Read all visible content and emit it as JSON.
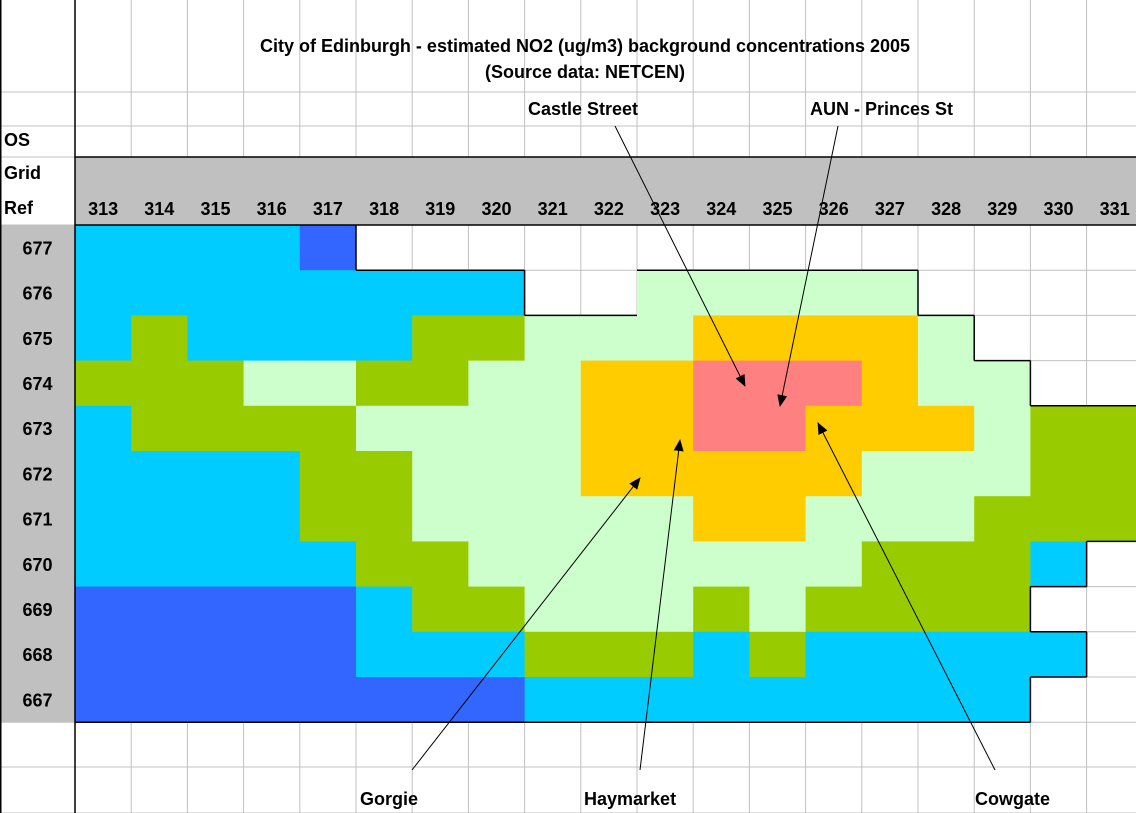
{
  "title": {
    "line1": "City of Edinburgh - estimated NO2 (ug/m3) background concentrations 2005",
    "line2": "(Source data: NETCEN)"
  },
  "header": {
    "os": "OS",
    "grid": "Grid",
    "ref": "Ref"
  },
  "columns": [
    "313",
    "314",
    "315",
    "316",
    "317",
    "318",
    "319",
    "320",
    "321",
    "322",
    "323",
    "324",
    "325",
    "326",
    "327",
    "328",
    "329",
    "330",
    "331"
  ],
  "rows": [
    {
      "label": "677",
      "cells": [
        "#00ccff",
        "#00ccff",
        "#00ccff",
        "#00ccff",
        "#3366ff",
        null,
        null,
        null,
        null,
        null,
        null,
        null,
        null,
        null,
        null,
        null,
        null,
        null,
        null
      ]
    },
    {
      "label": "676",
      "cells": [
        "#00ccff",
        "#00ccff",
        "#00ccff",
        "#00ccff",
        "#00ccff",
        "#00ccff",
        "#00ccff",
        "#00ccff",
        null,
        null,
        "#ccffcc",
        "#ccffcc",
        "#ccffcc",
        "#ccffcc",
        "#ccffcc",
        null,
        null,
        null,
        null
      ]
    },
    {
      "label": "675",
      "cells": [
        "#00ccff",
        "#99cc00",
        "#00ccff",
        "#00ccff",
        "#00ccff",
        "#00ccff",
        "#99cc00",
        "#99cc00",
        "#ccffcc",
        "#ccffcc",
        "#ccffcc",
        "#ffcc00",
        "#ffcc00",
        "#ffcc00",
        "#ffcc00",
        "#ccffcc",
        null,
        null,
        null
      ]
    },
    {
      "label": "674",
      "cells": [
        "#99cc00",
        "#99cc00",
        "#99cc00",
        "#ccffcc",
        "#ccffcc",
        "#99cc00",
        "#99cc00",
        "#ccffcc",
        "#ccffcc",
        "#ffcc00",
        "#ffcc00",
        "#ff8080",
        "#ff8080",
        "#ff8080",
        "#ffcc00",
        "#ccffcc",
        "#ccffcc",
        null,
        null
      ]
    },
    {
      "label": "673",
      "cells": [
        "#00ccff",
        "#99cc00",
        "#99cc00",
        "#99cc00",
        "#99cc00",
        "#ccffcc",
        "#ccffcc",
        "#ccffcc",
        "#ccffcc",
        "#ffcc00",
        "#ffcc00",
        "#ff8080",
        "#ff8080",
        "#ffcc00",
        "#ffcc00",
        "#ffcc00",
        "#ccffcc",
        "#99cc00",
        "#99cc00"
      ]
    },
    {
      "label": "672",
      "cells": [
        "#00ccff",
        "#00ccff",
        "#00ccff",
        "#00ccff",
        "#99cc00",
        "#99cc00",
        "#ccffcc",
        "#ccffcc",
        "#ccffcc",
        "#ffcc00",
        "#ffcc00",
        "#ffcc00",
        "#ffcc00",
        "#ffcc00",
        "#ccffcc",
        "#ccffcc",
        "#ccffcc",
        "#99cc00",
        "#99cc00"
      ]
    },
    {
      "label": "671",
      "cells": [
        "#00ccff",
        "#00ccff",
        "#00ccff",
        "#00ccff",
        "#99cc00",
        "#99cc00",
        "#ccffcc",
        "#ccffcc",
        "#ccffcc",
        "#ccffcc",
        "#ccffcc",
        "#ffcc00",
        "#ffcc00",
        "#ccffcc",
        "#ccffcc",
        "#ccffcc",
        "#99cc00",
        "#99cc00",
        "#99cc00"
      ]
    },
    {
      "label": "670",
      "cells": [
        "#00ccff",
        "#00ccff",
        "#00ccff",
        "#00ccff",
        "#00ccff",
        "#99cc00",
        "#99cc00",
        "#ccffcc",
        "#ccffcc",
        "#ccffcc",
        "#ccffcc",
        "#ccffcc",
        "#ccffcc",
        "#ccffcc",
        "#99cc00",
        "#99cc00",
        "#99cc00",
        "#00ccff",
        null
      ]
    },
    {
      "label": "669",
      "cells": [
        "#3366ff",
        "#3366ff",
        "#3366ff",
        "#3366ff",
        "#3366ff",
        "#00ccff",
        "#99cc00",
        "#99cc00",
        "#ccffcc",
        "#ccffcc",
        "#ccffcc",
        "#99cc00",
        "#ccffcc",
        "#99cc00",
        "#99cc00",
        "#99cc00",
        "#99cc00",
        null,
        null
      ]
    },
    {
      "label": "668",
      "cells": [
        "#3366ff",
        "#3366ff",
        "#3366ff",
        "#3366ff",
        "#3366ff",
        "#00ccff",
        "#00ccff",
        "#00ccff",
        "#99cc00",
        "#99cc00",
        "#99cc00",
        "#00ccff",
        "#99cc00",
        "#00ccff",
        "#00ccff",
        "#00ccff",
        "#00ccff",
        "#00ccff",
        null
      ]
    },
    {
      "label": "667",
      "cells": [
        "#3366ff",
        "#3366ff",
        "#3366ff",
        "#3366ff",
        "#3366ff",
        "#3366ff",
        "#3366ff",
        "#3366ff",
        "#00ccff",
        "#00ccff",
        "#00ccff",
        "#00ccff",
        "#00ccff",
        "#00ccff",
        "#00ccff",
        "#00ccff",
        "#00ccff",
        null,
        null
      ]
    }
  ],
  "annotations": [
    "Castle Street",
    "AUN - Princes St",
    "Gorgie",
    "Haymarket",
    "Cowgate"
  ]
}
